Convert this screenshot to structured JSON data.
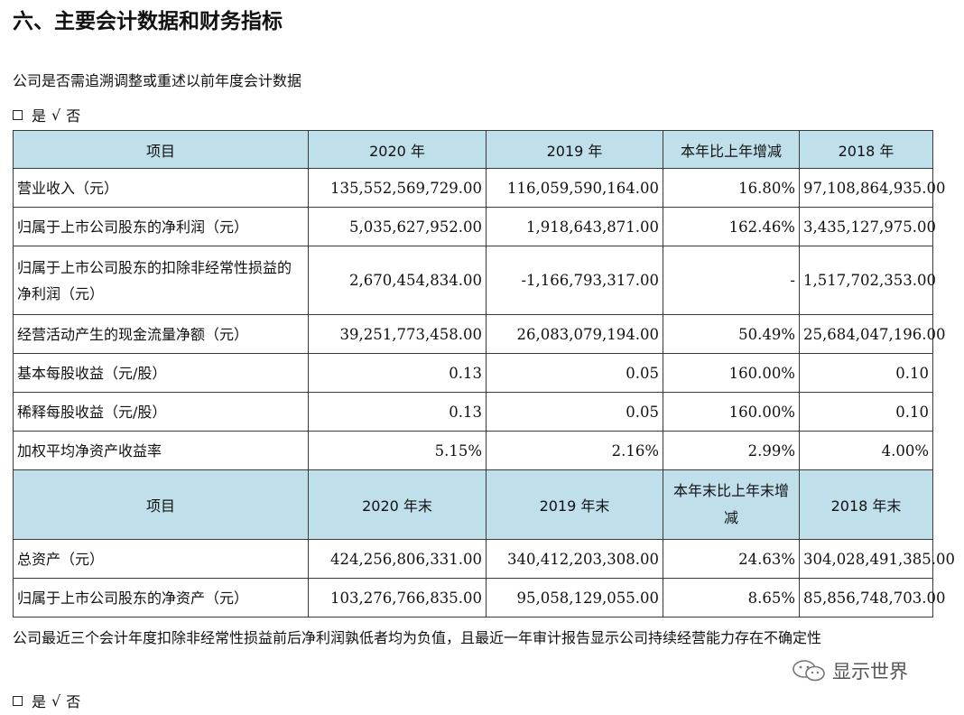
{
  "section_title": "六、主要会计数据和财务指标",
  "question1": "公司是否需追溯调整或重述以前年度会计数据",
  "option1": {
    "box": "□",
    "yes": "是",
    "check": "√",
    "no": "否"
  },
  "table": {
    "header1": [
      "项目",
      "2020 年",
      "2019 年",
      "本年比上年增减",
      "2018 年"
    ],
    "rows1": [
      [
        "营业收入（元）",
        "135,552,569,729.00",
        "116,059,590,164.00",
        "16.80%",
        "97,108,864,935.00"
      ],
      [
        "归属于上市公司股东的净利润（元）",
        "5,035,627,952.00",
        "1,918,643,871.00",
        "162.46%",
        "3,435,127,975.00"
      ],
      [
        "归属于上市公司股东的扣除非经常性损益的净利润（元）",
        "2,670,454,834.00",
        "-1,166,793,317.00",
        "-",
        "1,517,702,353.00"
      ],
      [
        "经营活动产生的现金流量净额（元）",
        "39,251,773,458.00",
        "26,083,079,194.00",
        "50.49%",
        "25,684,047,196.00"
      ],
      [
        "基本每股收益（元/股）",
        "0.13",
        "0.05",
        "160.00%",
        "0.10"
      ],
      [
        "稀释每股收益（元/股）",
        "0.13",
        "0.05",
        "160.00%",
        "0.10"
      ],
      [
        "加权平均净资产收益率",
        "5.15%",
        "2.16%",
        "2.99%",
        "4.00%"
      ]
    ],
    "header2": [
      "项目",
      "2020 年末",
      "2019 年末",
      "本年末比上年末增减",
      "2018 年末"
    ],
    "rows2": [
      [
        "总资产（元）",
        "424,256,806,331.00",
        "340,412,203,308.00",
        "24.63%",
        "304,028,491,385.00"
      ],
      [
        "归属于上市公司股东的净资产（元）",
        "103,276,766,835.00",
        "95,058,129,055.00",
        "8.65%",
        "85,856,748,703.00"
      ]
    ]
  },
  "note": "公司最近三个会计年度扣除非经常性损益前后净利润孰低者均为负值，且最近一年审计报告显示公司持续经营能力存在不确定性",
  "option2": {
    "box": "□",
    "yes": "是",
    "check": "√",
    "no": "否"
  },
  "watermark": {
    "text": "显示世界",
    "icon": "wechat-icon"
  }
}
